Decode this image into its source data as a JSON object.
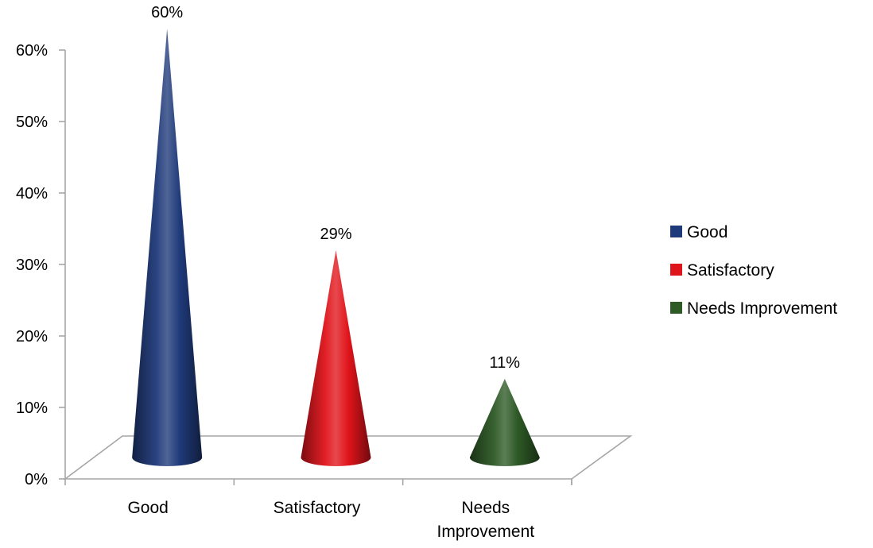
{
  "chart_data": {
    "type": "bar",
    "style": "3d-cone",
    "categories": [
      "Good",
      "Satisfactory",
      "Needs Improvement"
    ],
    "category_display": [
      [
        "Good"
      ],
      [
        "Satisfactory"
      ],
      [
        "Needs",
        "Improvement"
      ]
    ],
    "values": [
      60,
      29,
      11
    ],
    "data_labels": [
      "60%",
      "29%",
      "11%"
    ],
    "colors": [
      "#1f3a7a",
      "#e0141b",
      "#2e5a26"
    ],
    "ylim": [
      0,
      60
    ],
    "yticks": [
      0,
      10,
      20,
      30,
      40,
      50,
      60
    ],
    "ytick_labels": [
      "0%",
      "10%",
      "20%",
      "30%",
      "40%",
      "50%",
      "60%"
    ],
    "legend": {
      "position": "right",
      "entries": [
        "Good",
        "Satisfactory",
        "Needs Improvement"
      ]
    },
    "grid": false
  }
}
